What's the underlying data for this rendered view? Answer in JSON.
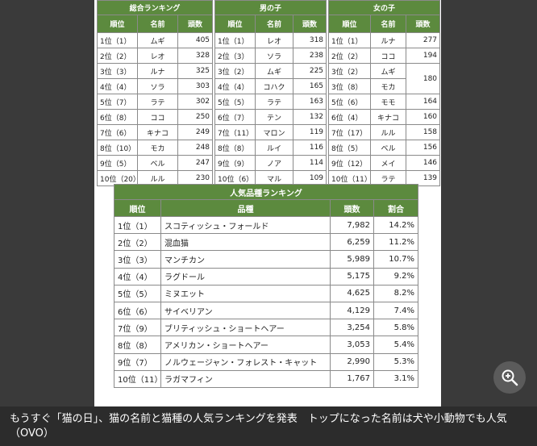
{
  "tables": [
    {
      "title": "総合ランキング",
      "headers": [
        "順位",
        "名前",
        "頭数"
      ],
      "rows": [
        [
          "1位（1）",
          "ムギ",
          "405"
        ],
        [
          "2位（2）",
          "レオ",
          "328"
        ],
        [
          "3位（3）",
          "ルナ",
          "325"
        ],
        [
          "4位（4）",
          "ソラ",
          "303"
        ],
        [
          "5位（7）",
          "ラテ",
          "302"
        ],
        [
          "6位（8）",
          "ココ",
          "250"
        ],
        [
          "7位（6）",
          "キナコ",
          "249"
        ],
        [
          "8位（10）",
          "モカ",
          "248"
        ],
        [
          "9位（5）",
          "ベル",
          "247"
        ],
        [
          "10位（20）",
          "ルル",
          "230"
        ]
      ]
    },
    {
      "title": "男の子",
      "headers": [
        "順位",
        "名前",
        "頭数"
      ],
      "rows": [
        [
          "1位（1）",
          "レオ",
          "318"
        ],
        [
          "2位（3）",
          "ソラ",
          "238"
        ],
        [
          "3位（2）",
          "ムギ",
          "225"
        ],
        [
          "4位（4）",
          "コハク",
          "165"
        ],
        [
          "5位（5）",
          "ラテ",
          "163"
        ],
        [
          "6位（7）",
          "テン",
          "132"
        ],
        [
          "7位（11）",
          "マロン",
          "119"
        ],
        [
          "8位（8）",
          "ルイ",
          "116"
        ],
        [
          "9位（9）",
          "ノア",
          "114"
        ],
        [
          "10位（6）",
          "マル",
          "109"
        ]
      ]
    },
    {
      "title": "女の子",
      "headers": [
        "順位",
        "名前",
        "頭数"
      ],
      "rows": [
        [
          "1位（1）",
          "ルナ",
          "277"
        ],
        [
          "2位（2）",
          "ココ",
          "194"
        ],
        [
          "3位（2）",
          "ムギ",
          "180"
        ],
        [
          "3位（8）",
          "モカ",
          ""
        ],
        [
          "5位（6）",
          "モモ",
          "164"
        ],
        [
          "6位（4）",
          "キナコ",
          "160"
        ],
        [
          "7位（17）",
          "ルル",
          "158"
        ],
        [
          "8位（5）",
          "ベル",
          "156"
        ],
        [
          "9位（12）",
          "メイ",
          "146"
        ],
        [
          "10位（11）",
          "ラテ",
          "139"
        ]
      ]
    }
  ],
  "breed_table": {
    "title": "人気品種ランキング",
    "headers": [
      "順位",
      "品種",
      "頭数",
      "割合"
    ],
    "rows": [
      [
        "1位（1）",
        "スコティッシュ・フォールド",
        "7,982",
        "14.2%"
      ],
      [
        "2位（2）",
        "混血猫",
        "6,259",
        "11.2%"
      ],
      [
        "3位（3）",
        "マンチカン",
        "5,989",
        "10.7%"
      ],
      [
        "4位（4）",
        "ラグドール",
        "5,175",
        "9.2%"
      ],
      [
        "5位（5）",
        "ミヌエット",
        "4,625",
        "8.2%"
      ],
      [
        "6位（6）",
        "サイベリアン",
        "4,129",
        "7.4%"
      ],
      [
        "7位（9）",
        "ブリティッシュ・ショートヘアー",
        "3,254",
        "5.8%"
      ],
      [
        "8位（8）",
        "アメリカン・ショートヘアー",
        "3,053",
        "5.4%"
      ],
      [
        "9位（7）",
        "ノルウェージャン・フォレスト・キャット",
        "2,990",
        "5.3%"
      ],
      [
        "10位（11）",
        "ラガマフィン",
        "1,767",
        "3.1%"
      ]
    ]
  },
  "caption": "もうすぐ「猫の日」、猫の名前と猫種の人気ランキングを発表　トップになった名前は犬や小動物でも人気（OVO）",
  "zoom_icon": "zoom-in-icon",
  "colors": {
    "header_green": "#5c8a3e",
    "background": "#3a3a3a"
  }
}
